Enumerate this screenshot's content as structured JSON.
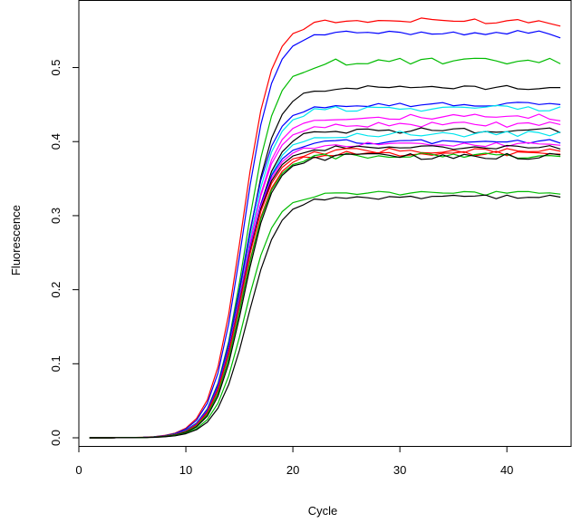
{
  "chart_data": {
    "type": "line",
    "title": "",
    "xlabel": "Cycle",
    "ylabel": "Fluorescence",
    "xlim": [
      0,
      46
    ],
    "ylim": [
      -0.011,
      0.59
    ],
    "xticks": [
      0,
      10,
      20,
      30,
      40
    ],
    "yticks": [
      0.0,
      0.1,
      0.2,
      0.3,
      0.4,
      0.5
    ],
    "ytick_labels": [
      "0.0",
      "0.1",
      "0.2",
      "0.3",
      "0.4",
      "0.5"
    ],
    "grid": false,
    "legend": "none",
    "x": [
      1,
      2,
      3,
      4,
      5,
      6,
      7,
      8,
      9,
      10,
      11,
      12,
      13,
      14,
      15,
      16,
      17,
      18,
      19,
      20,
      21,
      22,
      23,
      24,
      25,
      26,
      27,
      28,
      29,
      30,
      31,
      32,
      33,
      34,
      35,
      36,
      37,
      38,
      39,
      40,
      41,
      42,
      43,
      44,
      45
    ],
    "series": [
      {
        "color": "#ff0000",
        "plateau": 0.563,
        "midpoint": 15.2,
        "slope": 0.72,
        "delay": 0.02,
        "noise": 0.004,
        "last": 0.556
      },
      {
        "color": "#0000ff",
        "plateau": 0.547,
        "midpoint": 15.3,
        "slope": 0.72,
        "delay": 0.03,
        "noise": 0.003,
        "last": 0.54
      },
      {
        "color": "#00bb00",
        "plateau": 0.508,
        "midpoint": 15.5,
        "slope": 0.71,
        "delay": 0.05,
        "noise": 0.005,
        "last": 0.505
      },
      {
        "color": "#000000",
        "plateau": 0.473,
        "midpoint": 15.5,
        "slope": 0.71,
        "delay": 0.07,
        "noise": 0.003,
        "last": 0.473
      },
      {
        "color": "#0000ff",
        "plateau": 0.45,
        "midpoint": 15.3,
        "slope": 0.72,
        "delay": 0.09,
        "noise": 0.003,
        "last": 0.45
      },
      {
        "color": "#00e5ee",
        "plateau": 0.445,
        "midpoint": 15.4,
        "slope": 0.72,
        "delay": 0.11,
        "noise": 0.004,
        "last": 0.447
      },
      {
        "color": "#ff00ff",
        "plateau": 0.433,
        "midpoint": 15.4,
        "slope": 0.72,
        "delay": 0.13,
        "noise": 0.004,
        "last": 0.428
      },
      {
        "color": "#ff00ff",
        "plateau": 0.423,
        "midpoint": 15.3,
        "slope": 0.72,
        "delay": 0.15,
        "noise": 0.004,
        "last": 0.423
      },
      {
        "color": "#000000",
        "plateau": 0.415,
        "midpoint": 15.4,
        "slope": 0.72,
        "delay": 0.17,
        "noise": 0.004,
        "last": 0.412
      },
      {
        "color": "#00e5ee",
        "plateau": 0.41,
        "midpoint": 15.4,
        "slope": 0.72,
        "delay": 0.19,
        "noise": 0.004,
        "last": 0.413
      },
      {
        "color": "#0000ff",
        "plateau": 0.4,
        "midpoint": 15.2,
        "slope": 0.73,
        "delay": 0.21,
        "noise": 0.003,
        "last": 0.398
      },
      {
        "color": "#ff00ff",
        "plateau": 0.396,
        "midpoint": 15.2,
        "slope": 0.73,
        "delay": 0.23,
        "noise": 0.003,
        "last": 0.395
      },
      {
        "color": "#000000",
        "plateau": 0.392,
        "midpoint": 15.2,
        "slope": 0.73,
        "delay": 0.25,
        "noise": 0.003,
        "last": 0.39
      },
      {
        "color": "#ff0000",
        "plateau": 0.388,
        "midpoint": 15.2,
        "slope": 0.73,
        "delay": 0.27,
        "noise": 0.004,
        "last": 0.387
      },
      {
        "color": "#ff0000",
        "plateau": 0.384,
        "midpoint": 15.3,
        "slope": 0.73,
        "delay": 0.29,
        "noise": 0.004,
        "last": 0.383
      },
      {
        "color": "#00bb00",
        "plateau": 0.381,
        "midpoint": 15.3,
        "slope": 0.73,
        "delay": 0.31,
        "noise": 0.004,
        "last": 0.38
      },
      {
        "color": "#000000",
        "plateau": 0.38,
        "midpoint": 15.4,
        "slope": 0.73,
        "delay": 0.33,
        "noise": 0.004,
        "last": 0.382
      },
      {
        "color": "#00bb00",
        "plateau": 0.33,
        "midpoint": 15.5,
        "slope": 0.72,
        "delay": 0.35,
        "noise": 0.003,
        "last": 0.329
      },
      {
        "color": "#000000",
        "plateau": 0.325,
        "midpoint": 15.8,
        "slope": 0.7,
        "delay": 0.37,
        "noise": 0.003,
        "last": 0.325
      }
    ]
  }
}
